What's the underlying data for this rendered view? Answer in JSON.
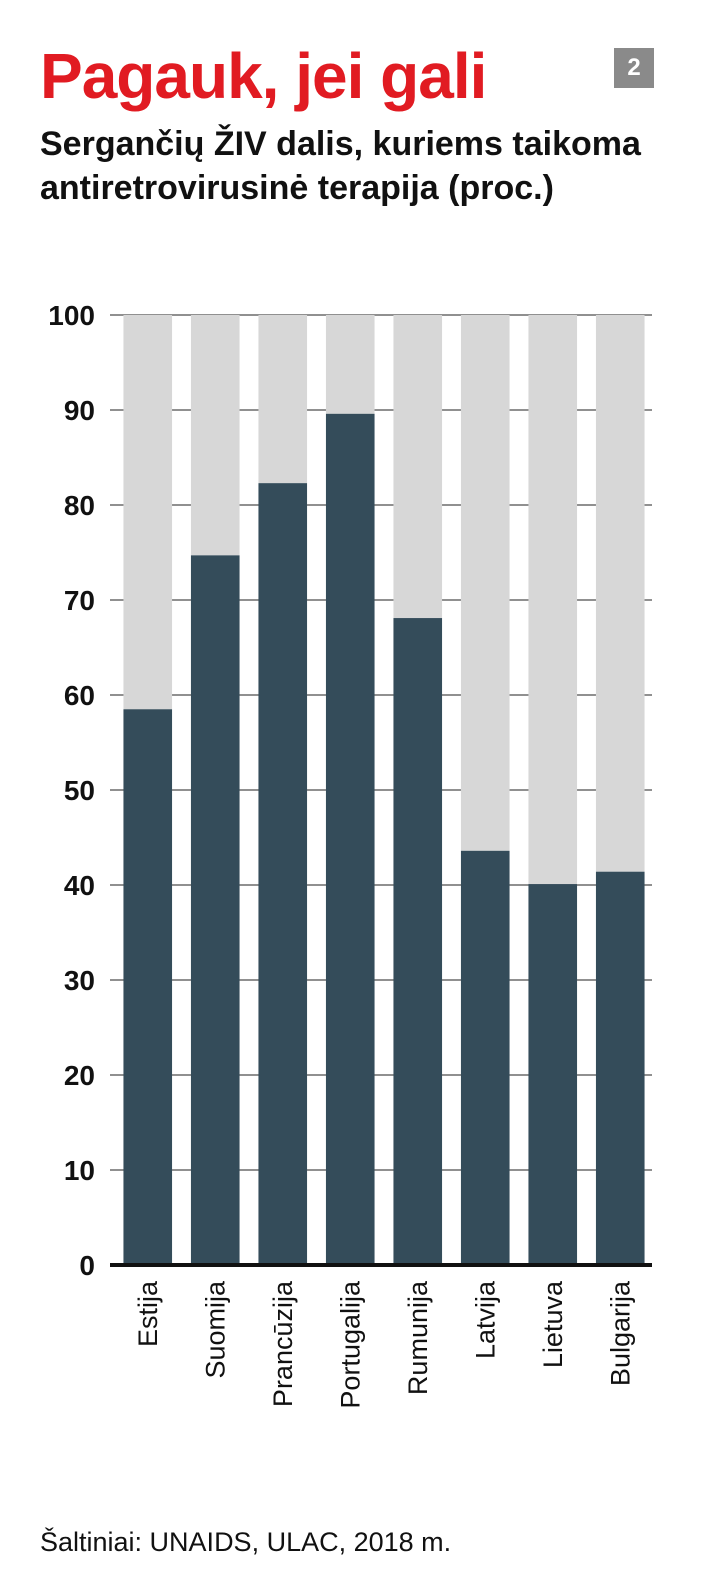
{
  "header": {
    "title": "Pagauk, jei gali",
    "badge": "2",
    "subtitle": "Sergančių ŽIV dalis, kuriems taikoma antiretrovirusinė terapija (proc.)"
  },
  "footer": {
    "source": "Šaltiniai: UNAIDS, ULAC, 2018 m."
  },
  "colors": {
    "title": "#e11b22",
    "badge_bg": "#8a8a8a",
    "bar_value": "#344c5a",
    "bar_remainder": "#d7d7d7",
    "gridline": "#222222",
    "axis_text": "#111111"
  },
  "chart_data": {
    "type": "bar",
    "stacked_to": 100,
    "categories": [
      "Estija",
      "Suomija",
      "Prancūzija",
      "Portugalija",
      "Rumunija",
      "Latvija",
      "Lietuva",
      "Bulgarija"
    ],
    "values": [
      58.5,
      74.7,
      82.3,
      89.6,
      68.1,
      43.6,
      40.1,
      41.4
    ],
    "yticks": [
      "0",
      "10",
      "20",
      "30",
      "40",
      "50",
      "60",
      "70",
      "80",
      "90",
      "100"
    ],
    "ylim": [
      0,
      100
    ],
    "grid": true,
    "xlabel": "",
    "ylabel": ""
  }
}
